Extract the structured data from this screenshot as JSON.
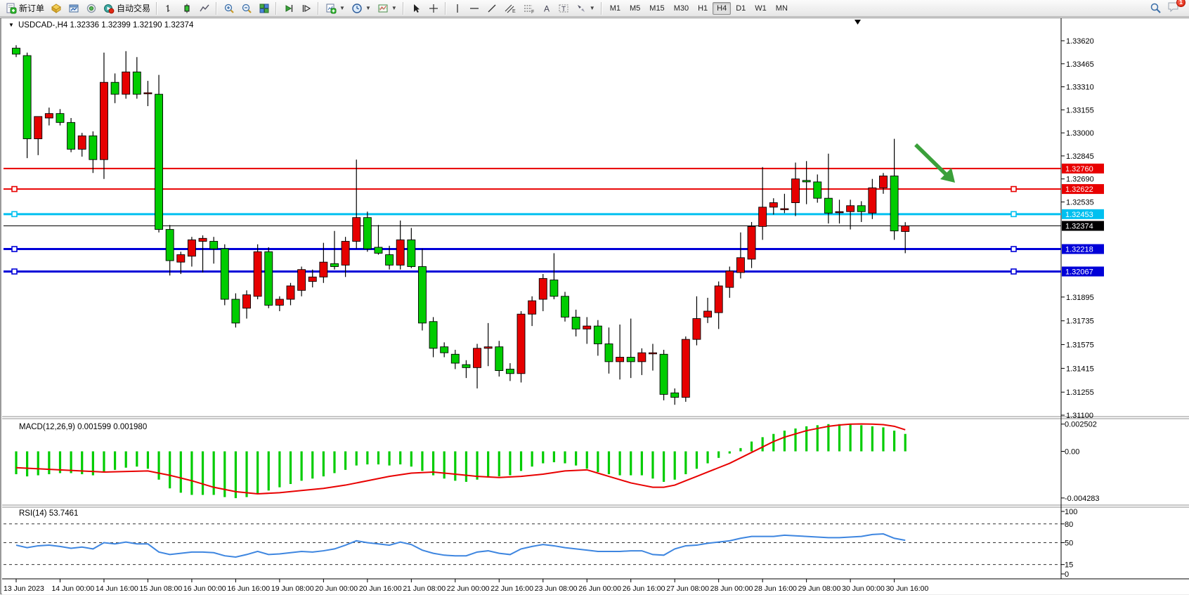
{
  "toolbar": {
    "new_order_label": "新订单",
    "autotrading_label": "自动交易",
    "timeframes": [
      "M1",
      "M5",
      "M15",
      "M30",
      "H1",
      "H4",
      "D1",
      "W1",
      "MN"
    ],
    "active_timeframe": "H4",
    "notification_count": "1"
  },
  "chart_data": {
    "type": "candlestick",
    "symbol": "USDCAD-,H4",
    "ohlc_display": "1.32336 1.32399 1.32190 1.32374",
    "bull_color": "#e60000",
    "bear_color": "#00cc00",
    "note": "red = bullish, green = bearish (Chinese convention)",
    "candles": [
      [
        1.3357,
        1.3359,
        1.3351,
        1.3353
      ],
      [
        1.3352,
        1.3354,
        1.3283,
        1.3296
      ],
      [
        1.3296,
        1.33,
        1.3285,
        1.3311
      ],
      [
        1.331,
        1.3317,
        1.3305,
        1.3313
      ],
      [
        1.3313,
        1.3316,
        1.3305,
        1.3307
      ],
      [
        1.3307,
        1.331,
        1.3287,
        1.3289
      ],
      [
        1.3289,
        1.33,
        1.3284,
        1.3298
      ],
      [
        1.3298,
        1.3301,
        1.3273,
        1.3282
      ],
      [
        1.3282,
        1.3354,
        1.3269,
        1.3334
      ],
      [
        1.3334,
        1.334,
        1.332,
        1.3326
      ],
      [
        1.3326,
        1.3355,
        1.3323,
        1.3341
      ],
      [
        1.3341,
        1.3351,
        1.3323,
        1.3326
      ],
      [
        1.3327,
        1.3335,
        1.3318,
        1.3327
      ],
      [
        1.3326,
        1.3339,
        1.3233,
        1.3235
      ],
      [
        1.3235,
        1.3238,
        1.3204,
        1.3214
      ],
      [
        1.3213,
        1.322,
        1.3205,
        1.3218
      ],
      [
        1.3217,
        1.323,
        1.321,
        1.3228
      ],
      [
        1.3227,
        1.3231,
        1.3206,
        1.3229
      ],
      [
        1.3227,
        1.323,
        1.3212,
        1.3222
      ],
      [
        1.3222,
        1.3225,
        1.3184,
        1.3188
      ],
      [
        1.3188,
        1.3192,
        1.3169,
        1.3172
      ],
      [
        1.3182,
        1.3194,
        1.3175,
        1.3191
      ],
      [
        1.319,
        1.3225,
        1.3188,
        1.322
      ],
      [
        1.322,
        1.3223,
        1.3182,
        1.3184
      ],
      [
        1.3184,
        1.319,
        1.318,
        1.3188
      ],
      [
        1.3188,
        1.3199,
        1.3184,
        1.3197
      ],
      [
        1.3194,
        1.321,
        1.319,
        1.3208
      ],
      [
        1.32,
        1.3208,
        1.3196,
        1.3203
      ],
      [
        1.3203,
        1.3226,
        1.3199,
        1.3213
      ],
      [
        1.3212,
        1.3234,
        1.3208,
        1.321
      ],
      [
        1.3211,
        1.323,
        1.3203,
        1.3227
      ],
      [
        1.3227,
        1.3282,
        1.3222,
        1.3243
      ],
      [
        1.3243,
        1.3247,
        1.322,
        1.3222
      ],
      [
        1.3223,
        1.3238,
        1.3218,
        1.3219
      ],
      [
        1.3218,
        1.3224,
        1.3208,
        1.3211
      ],
      [
        1.3211,
        1.3241,
        1.3208,
        1.3228
      ],
      [
        1.3228,
        1.3236,
        1.3209,
        1.321
      ],
      [
        1.321,
        1.3222,
        1.3167,
        1.3172
      ],
      [
        1.3173,
        1.3176,
        1.3149,
        1.3155
      ],
      [
        1.3156,
        1.3159,
        1.3149,
        1.3152
      ],
      [
        1.3151,
        1.3154,
        1.3141,
        1.3145
      ],
      [
        1.3144,
        1.3147,
        1.3135,
        1.3142
      ],
      [
        1.3142,
        1.3158,
        1.3128,
        1.3155
      ],
      [
        1.3155,
        1.3172,
        1.3143,
        1.3156
      ],
      [
        1.3156,
        1.316,
        1.3136,
        1.314
      ],
      [
        1.3141,
        1.3145,
        1.3133,
        1.3138
      ],
      [
        1.3138,
        1.318,
        1.3132,
        1.3178
      ],
      [
        1.3178,
        1.319,
        1.317,
        1.3187
      ],
      [
        1.3188,
        1.3205,
        1.318,
        1.3202
      ],
      [
        1.3201,
        1.3219,
        1.3188,
        1.319
      ],
      [
        1.319,
        1.3193,
        1.3173,
        1.3176
      ],
      [
        1.3176,
        1.3181,
        1.3163,
        1.3168
      ],
      [
        1.3168,
        1.3176,
        1.3158,
        1.317
      ],
      [
        1.317,
        1.3174,
        1.315,
        1.3158
      ],
      [
        1.3158,
        1.3169,
        1.3138,
        1.3146
      ],
      [
        1.3146,
        1.3171,
        1.3134,
        1.3149
      ],
      [
        1.3149,
        1.3175,
        1.3135,
        1.3146
      ],
      [
        1.3146,
        1.3155,
        1.3137,
        1.3152
      ],
      [
        1.3152,
        1.3158,
        1.314,
        1.3152
      ],
      [
        1.3151,
        1.3154,
        1.312,
        1.3124
      ],
      [
        1.3125,
        1.3128,
        1.3117,
        1.3122
      ],
      [
        1.3122,
        1.3163,
        1.3119,
        1.3161
      ],
      [
        1.3161,
        1.319,
        1.3157,
        1.3175
      ],
      [
        1.3176,
        1.3189,
        1.3172,
        1.318
      ],
      [
        1.3179,
        1.32,
        1.3168,
        1.3197
      ],
      [
        1.3196,
        1.321,
        1.3189,
        1.3207
      ],
      [
        1.3206,
        1.3233,
        1.3202,
        1.3216
      ],
      [
        1.3215,
        1.324,
        1.3209,
        1.3237
      ],
      [
        1.3237,
        1.3277,
        1.3228,
        1.325
      ],
      [
        1.325,
        1.3256,
        1.3245,
        1.3253
      ],
      [
        1.3249,
        1.3259,
        1.3246,
        1.3249
      ],
      [
        1.3253,
        1.328,
        1.3244,
        1.3269
      ],
      [
        1.3268,
        1.3281,
        1.3252,
        1.3267
      ],
      [
        1.3267,
        1.3272,
        1.3253,
        1.3256
      ],
      [
        1.3256,
        1.3286,
        1.3239,
        1.3246
      ],
      [
        1.3247,
        1.3255,
        1.3239,
        1.3247
      ],
      [
        1.3247,
        1.3255,
        1.3235,
        1.3251
      ],
      [
        1.3251,
        1.3254,
        1.324,
        1.3247
      ],
      [
        1.3246,
        1.3269,
        1.3242,
        1.3263
      ],
      [
        1.3263,
        1.3273,
        1.3259,
        1.3271
      ],
      [
        1.3271,
        1.3296,
        1.3228,
        1.3234
      ],
      [
        1.32336,
        1.32399,
        1.3219,
        1.32374
      ]
    ],
    "price_axis_labels": [
      "1.33620",
      "1.33465",
      "1.33310",
      "1.33155",
      "1.33000",
      "1.32845",
      "1.32690",
      "1.32535",
      "1.31895",
      "1.31735",
      "1.31575",
      "1.31415",
      "1.31255",
      "1.31100"
    ],
    "price_range": [
      1.311,
      1.3362
    ],
    "current_price": {
      "value": 1.32374,
      "label": "1.32374",
      "color": "#000000"
    },
    "hlines": [
      {
        "price": 1.3276,
        "label": "1.32760",
        "color": "#e80000",
        "width": 2,
        "handles": false
      },
      {
        "price": 1.32622,
        "label": "1.32622",
        "color": "#e80000",
        "width": 2,
        "handles": true
      },
      {
        "price": 1.32453,
        "label": "1.32453",
        "color": "#00c0f0",
        "width": 3,
        "handles": true
      },
      {
        "price": 1.32218,
        "label": "1.32218",
        "color": "#0000d8",
        "width": 3,
        "handles": true
      },
      {
        "price": 1.32067,
        "label": "1.32067",
        "color": "#0000d8",
        "width": 3,
        "handles": true
      }
    ],
    "time_labels": [
      "13 Jun 2023",
      "14 Jun 00:00",
      "14 Jun 16:00",
      "15 Jun 08:00",
      "16 Jun 00:00",
      "16 Jun 16:00",
      "19 Jun 08:00",
      "20 Jun 00:00",
      "20 Jun 16:00",
      "21 Jun 08:00",
      "22 Jun 00:00",
      "22 Jun 16:00",
      "23 Jun 08:00",
      "26 Jun 00:00",
      "26 Jun 16:00",
      "27 Jun 08:00",
      "28 Jun 00:00",
      "28 Jun 16:00",
      "29 Jun 08:00",
      "30 Jun 00:00",
      "30 Jun 16:00"
    ],
    "macd": {
      "label": "MACD(12,26,9) 0.001599 0.001980",
      "axis_labels": [
        "0.002502",
        "0.00",
        "-0.004283"
      ],
      "axis_values": [
        0.002502,
        0.0,
        -0.004283
      ],
      "hist_color": "#00cc00",
      "signal_color": "#e80000",
      "values": [
        -0.0021,
        -0.0023,
        -0.0022,
        -0.0021,
        -0.002,
        -0.002,
        -0.0021,
        -0.0022,
        -0.0019,
        -0.0017,
        -0.0015,
        -0.0014,
        -0.0016,
        -0.0026,
        -0.0034,
        -0.0038,
        -0.004,
        -0.004,
        -0.004,
        -0.0042,
        -0.0043,
        -0.0042,
        -0.0039,
        -0.0036,
        -0.0033,
        -0.003,
        -0.0027,
        -0.0025,
        -0.0023,
        -0.002,
        -0.0017,
        -0.0013,
        -0.0012,
        -0.0012,
        -0.0013,
        -0.0012,
        -0.0014,
        -0.0018,
        -0.0022,
        -0.0025,
        -0.0027,
        -0.0028,
        -0.0026,
        -0.0024,
        -0.0023,
        -0.0022,
        -0.0018,
        -0.0014,
        -0.0011,
        -0.001,
        -0.0011,
        -0.0013,
        -0.0016,
        -0.0019,
        -0.0021,
        -0.0022,
        -0.0022,
        -0.0022,
        -0.0025,
        -0.0028,
        -0.0026,
        -0.0021,
        -0.0016,
        -0.0011,
        -0.0006,
        -0.0002,
        0.0003,
        0.0009,
        0.0013,
        0.0016,
        0.0019,
        0.0021,
        0.0023,
        0.0024,
        0.0025,
        0.0025,
        0.0025,
        0.0024,
        0.0023,
        0.0022,
        0.0019,
        0.0016
      ],
      "signal_points": [
        [
          0,
          -0.0015
        ],
        [
          4,
          -0.0017
        ],
        [
          8,
          -0.0019
        ],
        [
          12,
          -0.0018
        ],
        [
          14,
          -0.0022
        ],
        [
          16,
          -0.0027
        ],
        [
          18,
          -0.0033
        ],
        [
          20,
          -0.0037
        ],
        [
          22,
          -0.0039
        ],
        [
          24,
          -0.0038
        ],
        [
          26,
          -0.0036
        ],
        [
          28,
          -0.0034
        ],
        [
          30,
          -0.0031
        ],
        [
          32,
          -0.0027
        ],
        [
          34,
          -0.0023
        ],
        [
          36,
          -0.002
        ],
        [
          38,
          -0.0019
        ],
        [
          40,
          -0.0021
        ],
        [
          42,
          -0.0023
        ],
        [
          44,
          -0.0024
        ],
        [
          46,
          -0.0023
        ],
        [
          48,
          -0.0021
        ],
        [
          50,
          -0.0018
        ],
        [
          52,
          -0.0017
        ],
        [
          53,
          -0.002
        ],
        [
          54,
          -0.0023
        ],
        [
          55,
          -0.0026
        ],
        [
          56,
          -0.0029
        ],
        [
          57,
          -0.0031
        ],
        [
          58,
          -0.0033
        ],
        [
          59,
          -0.0033
        ],
        [
          60,
          -0.0031
        ],
        [
          61,
          -0.0027
        ],
        [
          62,
          -0.0023
        ],
        [
          63,
          -0.0019
        ],
        [
          64,
          -0.0015
        ],
        [
          65,
          -0.0011
        ],
        [
          66,
          -0.0006
        ],
        [
          67,
          -0.0001
        ],
        [
          68,
          0.0004
        ],
        [
          69,
          0.0009
        ],
        [
          70,
          0.0013
        ],
        [
          71,
          0.0016
        ],
        [
          72,
          0.0019
        ],
        [
          73,
          0.0021
        ],
        [
          74,
          0.0023
        ],
        [
          75,
          0.00242
        ],
        [
          76,
          0.0025
        ],
        [
          77,
          0.00252
        ],
        [
          78,
          0.0025
        ],
        [
          79,
          0.00245
        ],
        [
          80,
          0.0023
        ],
        [
          81,
          0.00198
        ]
      ]
    },
    "rsi": {
      "label": "RSI(14) 53.7461",
      "line_color": "#3e86e0",
      "axis_labels": [
        "100",
        "80",
        "50",
        "15",
        "0"
      ],
      "axis_values": [
        100,
        80,
        50,
        15,
        0
      ],
      "dashed_levels": [
        80,
        50,
        15
      ],
      "values": [
        46,
        42,
        45,
        46,
        44,
        41,
        43,
        40,
        50,
        48,
        51,
        48,
        48,
        35,
        31,
        33,
        35,
        35,
        34,
        29,
        27,
        31,
        36,
        31,
        32,
        34,
        36,
        35,
        37,
        40,
        46,
        53,
        50,
        48,
        46,
        51,
        47,
        38,
        33,
        30,
        29,
        29,
        35,
        37,
        33,
        31,
        40,
        44,
        47,
        45,
        42,
        40,
        38,
        36,
        36,
        36,
        37,
        37,
        31,
        30,
        40,
        45,
        46,
        49,
        51,
        53,
        57,
        60,
        60,
        60,
        62,
        61,
        60,
        59,
        58,
        58,
        59,
        60,
        63,
        64,
        57,
        53.75
      ]
    },
    "annotation_arrow": {
      "color": "#3aa03a",
      "from_xy": [
        1301,
        205
      ],
      "to_xy": [
        1346,
        249
      ]
    }
  }
}
